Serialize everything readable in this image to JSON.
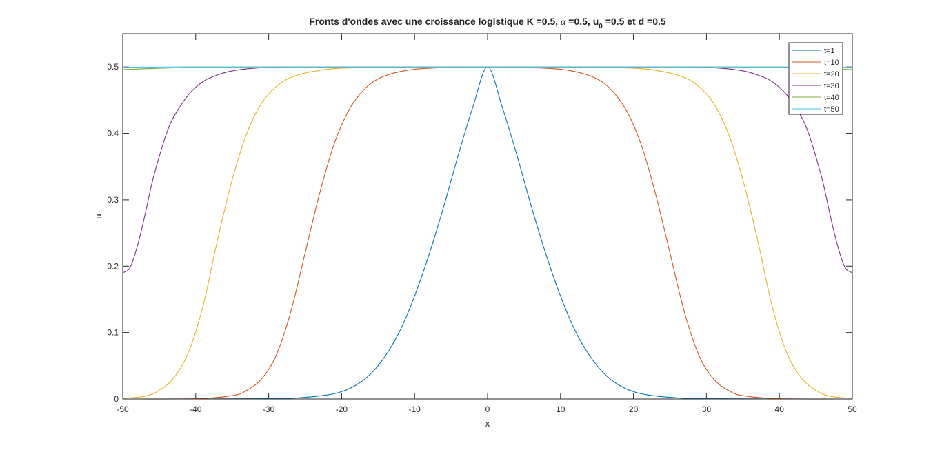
{
  "chart_data": {
    "type": "line",
    "title_main": "Fronts d'ondes avec une croissance logistique K =0.5, ",
    "title_alpha": "α",
    "title_mid": " =0.5, u",
    "title_sub": "0",
    "title_end": " =0.5 et d =0.5",
    "xlabel": "x",
    "ylabel": "u",
    "xlim": [
      -50,
      50
    ],
    "ylim": [
      0,
      0.55
    ],
    "xticks": [
      -50,
      -40,
      -30,
      -20,
      -10,
      0,
      10,
      20,
      30,
      40,
      50
    ],
    "yticks": [
      0,
      0.1,
      0.2,
      0.3,
      0.4,
      0.5
    ],
    "ytick_labels": [
      "0",
      "0.1",
      "0.2",
      "0.3",
      "0.4",
      "0.5"
    ],
    "grid": false,
    "legend_position": "top-right",
    "series": [
      {
        "name": "t=1",
        "color": "#0072BD",
        "x": [
          -50,
          -30,
          -25,
          -22,
          -20,
          -18,
          -16,
          -14,
          -12,
          -10,
          -8,
          -6,
          -4,
          -2,
          0,
          2,
          4,
          6,
          8,
          10,
          12,
          14,
          16,
          18,
          20,
          22,
          25,
          30,
          50
        ],
        "y": [
          0,
          0.0005,
          0.0025,
          0.006,
          0.011,
          0.021,
          0.038,
          0.065,
          0.103,
          0.155,
          0.218,
          0.29,
          0.368,
          0.44,
          0.5,
          0.44,
          0.368,
          0.29,
          0.218,
          0.155,
          0.103,
          0.065,
          0.038,
          0.021,
          0.011,
          0.006,
          0.0025,
          0.0005,
          0
        ]
      },
      {
        "name": "t=10",
        "color": "#D95319",
        "x": [
          -50,
          -40,
          -35,
          -33,
          -31,
          -29,
          -27,
          -25,
          -23,
          -21,
          -19,
          -17,
          -15,
          -12,
          -8,
          0,
          8,
          12,
          15,
          17,
          19,
          21,
          23,
          25,
          27,
          29,
          31,
          33,
          35,
          40,
          50
        ],
        "y": [
          0,
          0.0005,
          0.005,
          0.013,
          0.03,
          0.065,
          0.13,
          0.22,
          0.31,
          0.385,
          0.435,
          0.465,
          0.482,
          0.493,
          0.498,
          0.5,
          0.498,
          0.493,
          0.482,
          0.465,
          0.435,
          0.385,
          0.31,
          0.22,
          0.13,
          0.065,
          0.03,
          0.013,
          0.005,
          0.0005,
          0
        ]
      },
      {
        "name": "t=20",
        "color": "#EDB120",
        "x": [
          -50,
          -47,
          -45,
          -43,
          -41,
          -39,
          -37,
          -35,
          -33,
          -31,
          -29,
          -27,
          -24,
          -20,
          -10,
          0,
          10,
          20,
          24,
          27,
          29,
          31,
          33,
          35,
          37,
          39,
          41,
          43,
          45,
          47,
          50
        ],
        "y": [
          0.001,
          0.004,
          0.013,
          0.032,
          0.07,
          0.14,
          0.24,
          0.33,
          0.4,
          0.445,
          0.47,
          0.484,
          0.493,
          0.498,
          0.5,
          0.5,
          0.5,
          0.498,
          0.493,
          0.484,
          0.47,
          0.445,
          0.4,
          0.33,
          0.24,
          0.14,
          0.07,
          0.032,
          0.013,
          0.004,
          0.001
        ]
      },
      {
        "name": "t=30",
        "color": "#7E2F8E",
        "x": [
          -50,
          -49,
          -48,
          -47,
          -46,
          -45,
          -44,
          -43,
          -41,
          -39,
          -37,
          -35,
          -32,
          -28,
          -20,
          0,
          20,
          28,
          32,
          35,
          37,
          39,
          41,
          43,
          44,
          45,
          46,
          47,
          48,
          49,
          50
        ],
        "y": [
          0.19,
          0.198,
          0.23,
          0.275,
          0.325,
          0.365,
          0.4,
          0.425,
          0.458,
          0.478,
          0.488,
          0.494,
          0.498,
          0.5,
          0.5,
          0.5,
          0.5,
          0.5,
          0.498,
          0.494,
          0.488,
          0.478,
          0.458,
          0.425,
          0.4,
          0.365,
          0.325,
          0.275,
          0.23,
          0.198,
          0.19
        ]
      },
      {
        "name": "t=40",
        "color": "#77AC30",
        "x": [
          -50,
          -45,
          -40,
          -35,
          -30,
          0,
          30,
          35,
          40,
          45,
          50
        ],
        "y": [
          0.496,
          0.498,
          0.4993,
          0.4998,
          0.5,
          0.5,
          0.5,
          0.4998,
          0.4993,
          0.498,
          0.496
        ]
      },
      {
        "name": "t=50",
        "color": "#4DBEEE",
        "x": [
          -50,
          -45,
          -40,
          0,
          40,
          45,
          50
        ],
        "y": [
          0.4995,
          0.4998,
          0.5,
          0.5,
          0.5,
          0.4998,
          0.4995
        ]
      }
    ]
  }
}
